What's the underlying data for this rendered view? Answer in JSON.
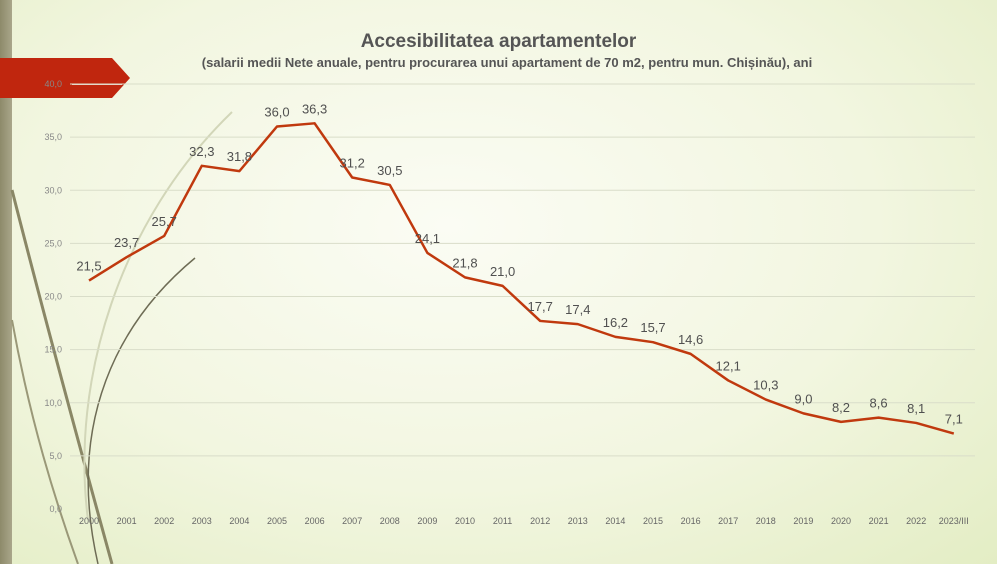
{
  "title": "Accesibilitatea apartamentelor",
  "subtitle": "(salarii medii Nete anuale, pentru procurarea unui apartament de 70 m2, pentru mun. Chișinău), ani",
  "colors": {
    "line": "#c0390e",
    "tag": "#c0260e",
    "grid": "#d9ddc9"
  },
  "chart_data": {
    "type": "line",
    "categories": [
      "2000",
      "2001",
      "2002",
      "2003",
      "2004",
      "2005",
      "2006",
      "2007",
      "2008",
      "2009",
      "2010",
      "2011",
      "2012",
      "2013",
      "2014",
      "2015",
      "2016",
      "2017",
      "2018",
      "2019",
      "2020",
      "2021",
      "2022",
      "2023/III"
    ],
    "values": [
      21.5,
      23.7,
      25.7,
      32.3,
      31.8,
      36.0,
      36.3,
      31.2,
      30.5,
      24.1,
      21.8,
      21.0,
      17.7,
      17.4,
      16.2,
      15.7,
      14.6,
      12.1,
      10.3,
      9.0,
      8.2,
      8.6,
      8.1,
      7.1
    ],
    "labels": [
      "21,5",
      "23,7",
      "25,7",
      "32,3",
      "31,8",
      "36,0",
      "36,3",
      "31,2",
      "30,5",
      "24,1",
      "21,8",
      "21,0",
      "17,7",
      "17,4",
      "16,2",
      "15,7",
      "14,6",
      "12,1",
      "10,3",
      "9,0",
      "8,2",
      "8,6",
      "8,1",
      "7,1"
    ],
    "yticks": [
      "0,0",
      "5,0",
      "10,0",
      "15,0",
      "20,0",
      "25,0",
      "30,0",
      "35,0",
      "40,0"
    ],
    "ylim": [
      0,
      40
    ],
    "grid": true,
    "legend": "none"
  }
}
